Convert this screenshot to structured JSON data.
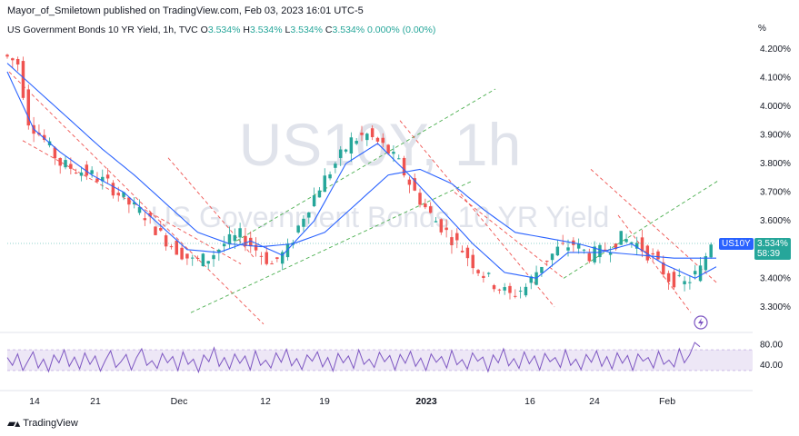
{
  "header": {
    "published": "Mayor_of_Smiletown published on TradingView.com, Feb 03, 2023 16:01 UTC-5"
  },
  "legend": {
    "title": "US Government Bonds 10 YR Yield, 1h, TVC",
    "o_label": "O",
    "o_value": "3.534%",
    "h_label": "H",
    "h_value": "3.534%",
    "l_label": "L",
    "l_value": "3.534%",
    "c_label": "C",
    "c_value": "3.534%",
    "change": "0.000% (0.00%)"
  },
  "watermark": {
    "symbol": "US10Y, 1h",
    "name": "US Government Bonds 10 YR Yield"
  },
  "badges": {
    "ticker": "US10Y",
    "price": "3.534%",
    "countdown": "58:39"
  },
  "footer": {
    "brand": "TradingView",
    "icon": "tradingview-logo-icon"
  },
  "colors": {
    "up": "#26a69a",
    "down": "#ef5350",
    "ma": "#2962ff",
    "rsi": "#7e57c2",
    "rsi_band": "#ede7f6",
    "channel_green": "#4caf50",
    "channel_red": "#ef5350"
  },
  "chart_data": [
    {
      "type": "candlestick",
      "title": "US Government Bonds 10 YR Yield, 1h, TVC",
      "y_unit": "%",
      "ylim": [
        3.23,
        4.25
      ],
      "y_ticks": [
        "4.200%",
        "4.100%",
        "4.000%",
        "3.900%",
        "3.800%",
        "3.700%",
        "3.600%",
        "3.500%",
        "3.400%",
        "3.300%"
      ],
      "x_tick_labels": [
        "14",
        "21",
        "Dec",
        "12",
        "19",
        "2023",
        "16",
        "24",
        "Feb"
      ],
      "last_price": 3.534,
      "price_path": [
        [
          0,
          4.18
        ],
        [
          3,
          4.15
        ],
        [
          5,
          3.95
        ],
        [
          8,
          3.88
        ],
        [
          11,
          3.8
        ],
        [
          14,
          3.78
        ],
        [
          17,
          3.76
        ],
        [
          20,
          3.73
        ],
        [
          24,
          3.66
        ],
        [
          27,
          3.62
        ],
        [
          30,
          3.55
        ],
        [
          33,
          3.5
        ],
        [
          36,
          3.46
        ],
        [
          39,
          3.47
        ],
        [
          42,
          3.52
        ],
        [
          45,
          3.55
        ],
        [
          48,
          3.5
        ],
        [
          51,
          3.45
        ],
        [
          54,
          3.5
        ],
        [
          57,
          3.62
        ],
        [
          60,
          3.72
        ],
        [
          63,
          3.8
        ],
        [
          66,
          3.88
        ],
        [
          69,
          3.9
        ],
        [
          72,
          3.86
        ],
        [
          75,
          3.8
        ],
        [
          78,
          3.7
        ],
        [
          81,
          3.62
        ],
        [
          84,
          3.56
        ],
        [
          87,
          3.5
        ],
        [
          90,
          3.43
        ],
        [
          93,
          3.38
        ],
        [
          96,
          3.34
        ],
        [
          99,
          3.37
        ],
        [
          102,
          3.45
        ],
        [
          105,
          3.5
        ],
        [
          108,
          3.52
        ],
        [
          111,
          3.48
        ],
        [
          114,
          3.5
        ],
        [
          117,
          3.54
        ],
        [
          120,
          3.52
        ],
        [
          123,
          3.47
        ],
        [
          126,
          3.4
        ],
        [
          129,
          3.38
        ],
        [
          132,
          3.43
        ],
        [
          134,
          3.53
        ]
      ],
      "ma_path": [
        [
          0,
          4.15
        ],
        [
          6,
          4.05
        ],
        [
          12,
          3.95
        ],
        [
          18,
          3.85
        ],
        [
          24,
          3.76
        ],
        [
          30,
          3.66
        ],
        [
          36,
          3.56
        ],
        [
          42,
          3.52
        ],
        [
          48,
          3.51
        ],
        [
          54,
          3.52
        ],
        [
          60,
          3.56
        ],
        [
          66,
          3.66
        ],
        [
          72,
          3.76
        ],
        [
          78,
          3.78
        ],
        [
          84,
          3.73
        ],
        [
          90,
          3.64
        ],
        [
          96,
          3.56
        ],
        [
          102,
          3.54
        ],
        [
          108,
          3.52
        ],
        [
          114,
          3.49
        ],
        [
          120,
          3.48
        ],
        [
          126,
          3.47
        ],
        [
          134,
          3.47
        ]
      ],
      "ma_fast_path": [
        [
          0,
          4.12
        ],
        [
          5,
          3.92
        ],
        [
          10,
          3.84
        ],
        [
          16,
          3.76
        ],
        [
          22,
          3.7
        ],
        [
          28,
          3.6
        ],
        [
          34,
          3.5
        ],
        [
          40,
          3.49
        ],
        [
          46,
          3.53
        ],
        [
          52,
          3.48
        ],
        [
          58,
          3.6
        ],
        [
          64,
          3.8
        ],
        [
          70,
          3.87
        ],
        [
          76,
          3.76
        ],
        [
          82,
          3.64
        ],
        [
          88,
          3.52
        ],
        [
          94,
          3.42
        ],
        [
          100,
          3.4
        ],
        [
          106,
          3.49
        ],
        [
          112,
          3.49
        ],
        [
          118,
          3.52
        ],
        [
          124,
          3.45
        ],
        [
          130,
          3.4
        ],
        [
          134,
          3.44
        ]
      ],
      "x_count": 135
    },
    {
      "type": "line",
      "title": "",
      "ylim": [
        0,
        100
      ],
      "y_ticks": [
        "80.00",
        "40.00"
      ],
      "band": [
        30,
        70
      ],
      "values": [
        55,
        40,
        62,
        30,
        48,
        66,
        35,
        52,
        28,
        60,
        45,
        70,
        38,
        56,
        33,
        64,
        42,
        58,
        29,
        50,
        68,
        36,
        47,
        61,
        31,
        55,
        72,
        40,
        49,
        34,
        63,
        45,
        57,
        30,
        66,
        42,
        52,
        27,
        60,
        47,
        74,
        38,
        55,
        33,
        62,
        44,
        58,
        31,
        68,
        40,
        50,
        35,
        64,
        46,
        71,
        39,
        53,
        32,
        60,
        48,
        66,
        37,
        55,
        29,
        63,
        45,
        58,
        34,
        70,
        42,
        52,
        36,
        65,
        47,
        59,
        31,
        61,
        44,
        67,
        38,
        54,
        30,
        62,
        46,
        57,
        35,
        69,
        41,
        51,
        33,
        64,
        48,
        56,
        28,
        60,
        45,
        72,
        39,
        53,
        34,
        66,
        43,
        58,
        31,
        63,
        47,
        55,
        36,
        70,
        40,
        52,
        32,
        61,
        46,
        68,
        38,
        57,
        33,
        64,
        44,
        59,
        30,
        62,
        48,
        55,
        35,
        67,
        42,
        50,
        37,
        72,
        45,
        60,
        84,
        76
      ]
    }
  ]
}
